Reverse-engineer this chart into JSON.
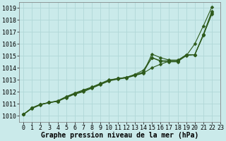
{
  "title": "Graphe pression niveau de la mer (hPa)",
  "bg_color": "#caeaea",
  "grid_color": "#b0d8d8",
  "line_color": "#2d5a1b",
  "xlim": [
    -0.5,
    23
  ],
  "ylim": [
    1009.5,
    1019.5
  ],
  "xtick_vals": [
    0,
    1,
    2,
    3,
    4,
    5,
    6,
    7,
    8,
    9,
    10,
    11,
    12,
    13,
    14,
    15,
    16,
    17,
    18,
    19,
    20,
    21,
    22,
    23
  ],
  "ytick_vals": [
    1010,
    1011,
    1012,
    1013,
    1014,
    1015,
    1016,
    1017,
    1018,
    1019
  ],
  "series": [
    [
      1010.1,
      1010.6,
      1010.9,
      1011.1,
      1011.2,
      1011.5,
      1011.8,
      1012.0,
      1012.3,
      1012.6,
      1012.9,
      1013.05,
      1013.15,
      1013.35,
      1013.55,
      1014.0,
      1014.3,
      1014.55,
      1014.55,
      1015.0,
      1016.0,
      1017.5,
      1019.1
    ],
    [
      1010.1,
      1010.65,
      1010.95,
      1011.1,
      1011.2,
      1011.55,
      1011.85,
      1012.05,
      1012.35,
      1012.65,
      1012.95,
      1013.1,
      1013.2,
      1013.4,
      1013.6,
      1015.15,
      1014.85,
      1014.65,
      1014.65,
      1015.05,
      1015.1,
      1016.8,
      1018.75
    ],
    [
      1010.1,
      1010.65,
      1010.95,
      1011.1,
      1011.2,
      1011.55,
      1011.85,
      1012.1,
      1012.35,
      1012.65,
      1012.95,
      1013.1,
      1013.2,
      1013.4,
      1013.65,
      1014.85,
      1014.55,
      1014.5,
      1014.5,
      1015.05,
      1015.1,
      1016.7,
      1018.6
    ],
    [
      1010.1,
      1010.65,
      1010.95,
      1011.1,
      1011.25,
      1011.6,
      1011.9,
      1012.15,
      1012.4,
      1012.7,
      1013.0,
      1013.1,
      1013.2,
      1013.45,
      1013.8,
      1014.85,
      1014.6,
      1014.6,
      1014.6,
      1015.1,
      1015.1,
      1016.75,
      1018.5
    ]
  ],
  "marker": "D",
  "marker_size": 2.5,
  "xlabel_fontsize": 7,
  "tick_fontsize": 6,
  "figsize": [
    3.2,
    2.0
  ],
  "dpi": 100
}
